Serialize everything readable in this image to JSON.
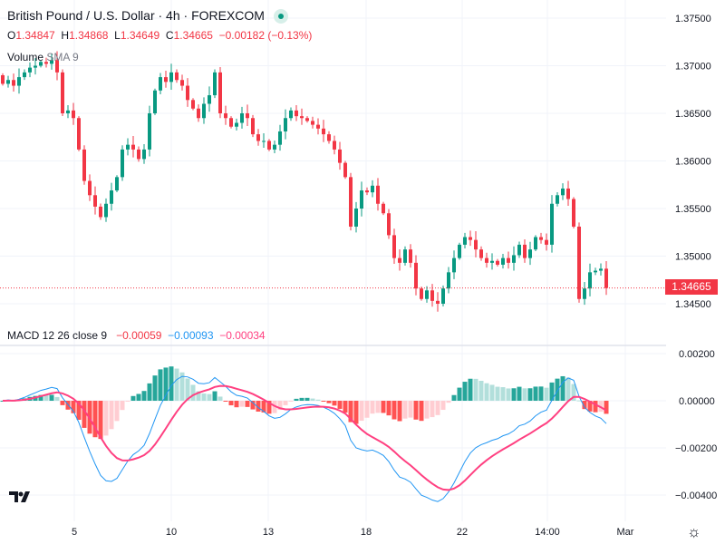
{
  "header": {
    "title": "British Pound / U.S. Dollar · 4h · FOREXCOM",
    "open_label": "O",
    "open": "1.34847",
    "high_label": "H",
    "high": "1.34868",
    "low_label": "L",
    "low": "1.34649",
    "close_label": "C",
    "close": "1.34665",
    "change": "−0.00182 (−0.13%)",
    "volume_label": "Volume",
    "volume_sma": "SMA 9"
  },
  "macd_legend": {
    "label": "MACD 12 26 close 9",
    "hist": "−0.00059",
    "macd": "−0.00093",
    "signal": "−0.00034"
  },
  "last_price_tag": "1.34665",
  "logo_text": "TV",
  "colors": {
    "up": "#089981",
    "down": "#f23645",
    "macd": "#2196f3",
    "signal": "#ff4081",
    "hist_up_strong": "#26a69a",
    "hist_up_weak": "#b2dfdb",
    "hist_down_strong": "#ff5252",
    "hist_down_weak": "#ffcdd2"
  },
  "chart_data": {
    "type": "candlestick",
    "symbol": "GBPUSD",
    "interval": "4h",
    "price_axis": {
      "ticks": [
        "1.37500",
        "1.37000",
        "1.36500",
        "1.36000",
        "1.35500",
        "1.35000",
        "1.34500"
      ],
      "range": [
        1.3426,
        1.3765
      ]
    },
    "macd_axis": {
      "ticks": [
        "0.00200",
        "0.00000",
        "−0.00200",
        "−0.00400"
      ],
      "range": [
        -0.005,
        0.0025
      ]
    },
    "time_axis": [
      "5",
      "10",
      "13",
      "18",
      "22",
      "14:00",
      "Mar"
    ],
    "first_open": 1.369,
    "closes": [
      1.3681,
      1.3685,
      1.3679,
      1.3688,
      1.3693,
      1.3698,
      1.37,
      1.3704,
      1.3702,
      1.3706,
      1.3693,
      1.365,
      1.3653,
      1.3645,
      1.3612,
      1.3579,
      1.3564,
      1.3552,
      1.3541,
      1.3555,
      1.3569,
      1.3583,
      1.3612,
      1.3617,
      1.3612,
      1.3602,
      1.3612,
      1.365,
      1.3674,
      1.3688,
      1.3683,
      1.3693,
      1.3685,
      1.3679,
      1.3664,
      1.3655,
      1.3645,
      1.366,
      1.3669,
      1.3693,
      1.365,
      1.3645,
      1.3636,
      1.364,
      1.365,
      1.3645,
      1.3628,
      1.3621,
      1.3621,
      1.3612,
      1.3617,
      1.3631,
      1.3645,
      1.3653,
      1.3647,
      1.3645,
      1.3642,
      1.3638,
      1.3634,
      1.3628,
      1.3621,
      1.3612,
      1.3598,
      1.3583,
      1.3531,
      1.355,
      1.3569,
      1.3567,
      1.3574,
      1.3555,
      1.3545,
      1.3522,
      1.3498,
      1.3493,
      1.3507,
      1.3493,
      1.3466,
      1.3455,
      1.3464,
      1.3453,
      1.345,
      1.3466,
      1.3483,
      1.3498,
      1.3512,
      1.352,
      1.3517,
      1.3507,
      1.3498,
      1.3493,
      1.3495,
      1.3491,
      1.3498,
      1.3493,
      1.3501,
      1.3512,
      1.3498,
      1.3507,
      1.352,
      1.3517,
      1.3512,
      1.3555,
      1.3564,
      1.3571,
      1.356,
      1.3531,
      1.3455,
      1.3466,
      1.3483,
      1.34847,
      1.34868,
      1.34665
    ],
    "last_price": 1.34665
  }
}
